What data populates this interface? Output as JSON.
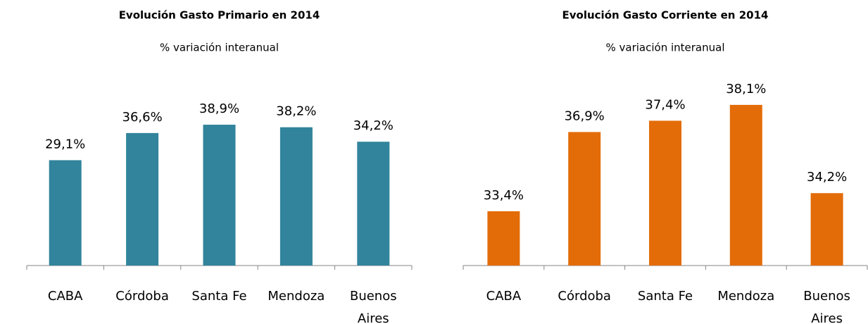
{
  "chart_data": [
    {
      "type": "bar",
      "title": "Evolución Gasto Primario en 2014",
      "subtitle": "% variación interanual",
      "categories": [
        "CABA",
        "Córdoba",
        "Santa Fe",
        "Mendoza",
        "Buenos Aires"
      ],
      "values": [
        29.1,
        36.6,
        38.9,
        38.2,
        34.2
      ],
      "value_labels": [
        "29,1%",
        "36,6%",
        "38,9%",
        "38,2%",
        "34,2%"
      ],
      "color": "#31849b",
      "ylim": [
        0,
        50
      ]
    },
    {
      "type": "bar",
      "title": "Evolución Gasto Corriente en 2014",
      "subtitle": "% variación interanual",
      "categories": [
        "CABA",
        "Córdoba",
        "Santa Fe",
        "Mendoza",
        "Buenos Aires"
      ],
      "values": [
        33.4,
        36.9,
        37.4,
        38.1,
        34.2
      ],
      "value_labels": [
        "33,4%",
        "36,9%",
        "37,4%",
        "38,1%",
        "34,2%"
      ],
      "color": "#e36c09",
      "ylim": [
        31,
        39
      ]
    }
  ]
}
